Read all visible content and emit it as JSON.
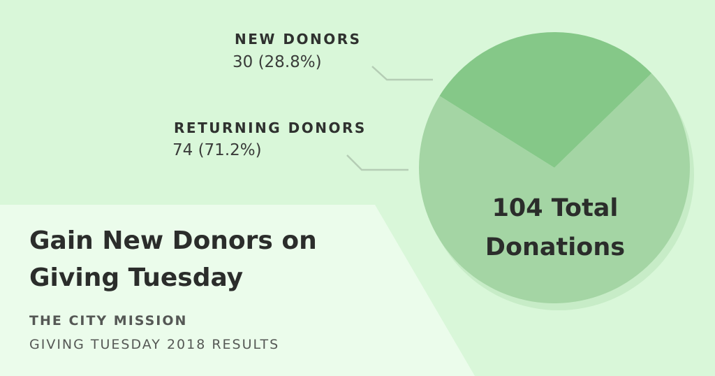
{
  "chart_data": {
    "type": "pie",
    "title": "Gain New Donors on Giving Tuesday",
    "total_label": "104 Total Donations",
    "series": [
      {
        "name": "NEW DONORS",
        "value": 30,
        "value_label": "30 (28.8%)",
        "color": "#85c888"
      },
      {
        "name": "RETURNING DONORS",
        "value": 74,
        "value_label": "74 (71.2%)",
        "color": "#a4d5a4"
      }
    ]
  },
  "header": {
    "organization": "THE CITY MISSION",
    "subtitle": "GIVING TUESDAY 2018 RESULTS"
  },
  "colors": {
    "background": "#d9f7d9",
    "panel": "#ebfceb",
    "connector": "#b5cdb5",
    "pie_shadow": "#c7ecc7"
  }
}
